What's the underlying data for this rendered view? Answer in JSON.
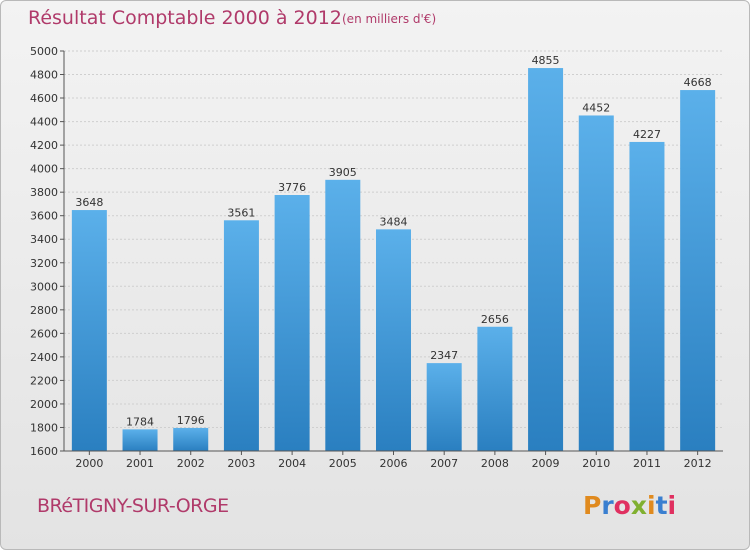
{
  "title": "Résultat Comptable 2000 à 2012",
  "subtitle": "(en milliers d'€)",
  "city": "BRéTIGNY-SUR-ORGE",
  "logo": {
    "letters": [
      "P",
      "r",
      "o",
      "x",
      "i",
      "t",
      "i"
    ],
    "colors": [
      "#e08a1e",
      "#3a7fd0",
      "#e03060",
      "#80b030",
      "#e08a1e",
      "#3a7fd0",
      "#e03060"
    ]
  },
  "colors": {
    "bar_top": "#5bb0ea",
    "bar_bottom": "#2a7fc0",
    "title": "#b03a6a"
  },
  "chart_data": {
    "type": "bar",
    "categories": [
      "2000",
      "2001",
      "2002",
      "2003",
      "2004",
      "2005",
      "2006",
      "2007",
      "2008",
      "2009",
      "2010",
      "2011",
      "2012"
    ],
    "values": [
      3648,
      1784,
      1796,
      3561,
      3776,
      3905,
      3484,
      2347,
      2656,
      4855,
      4452,
      4227,
      4668
    ],
    "ylim": [
      1600,
      5000
    ],
    "yticks": [
      1600,
      1800,
      2000,
      2200,
      2400,
      2600,
      2800,
      3000,
      3200,
      3400,
      3600,
      3800,
      4000,
      4200,
      4400,
      4600,
      4800,
      5000
    ],
    "grid": true,
    "xlabel": "",
    "ylabel": ""
  }
}
